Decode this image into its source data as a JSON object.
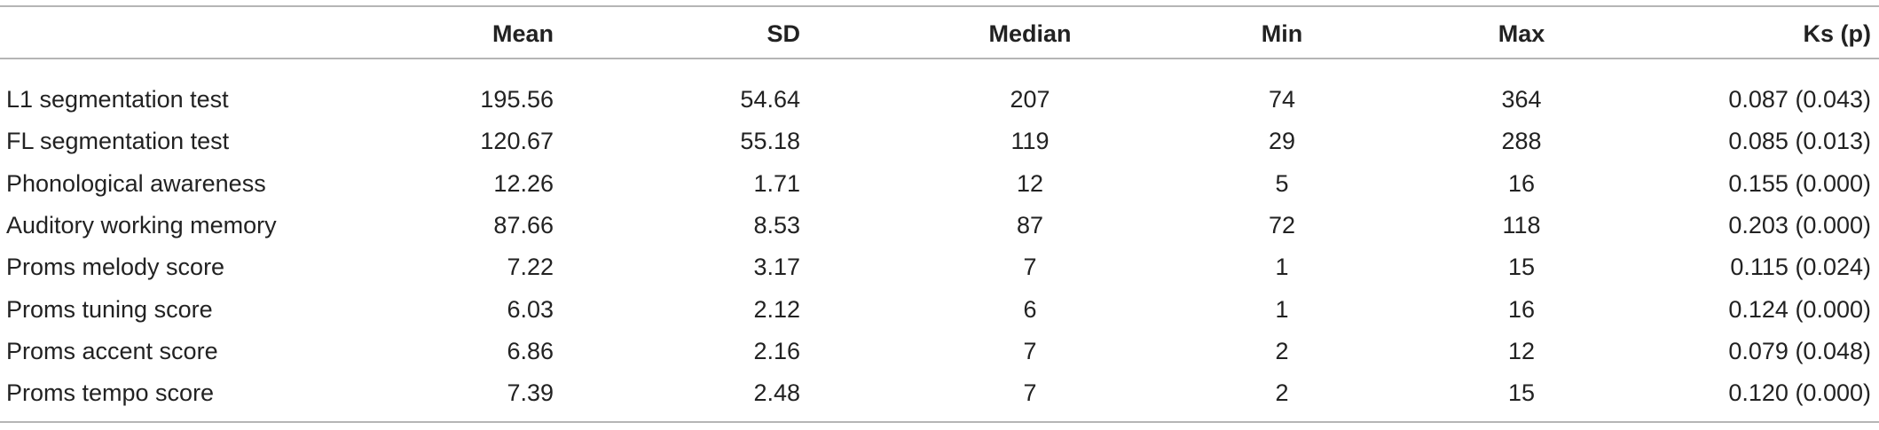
{
  "table": {
    "header": [
      "Mean",
      "SD",
      "Median",
      "Min",
      "Max",
      "Ks (p)"
    ],
    "rows": [
      [
        "L1 segmentation test",
        "195.56",
        "54.64",
        "207",
        "74",
        "364",
        "0.087 (0.043)"
      ],
      [
        "FL segmentation test",
        "120.67",
        "55.18",
        "119",
        "29",
        "288",
        "0.085 (0.013)"
      ],
      [
        "Phonological awareness",
        "12.26",
        "1.71",
        "12",
        "5",
        "16",
        "0.155 (0.000)"
      ],
      [
        "Auditory working memory",
        "87.66",
        "8.53",
        "87",
        "72",
        "118",
        "0.203 (0.000)"
      ],
      [
        "Proms melody score",
        "7.22",
        "3.17",
        "7",
        "1",
        "15",
        "0.115 (0.024)"
      ],
      [
        "Proms tuning score",
        "6.03",
        "2.12",
        "6",
        "1",
        "16",
        "0.124 (0.000)"
      ],
      [
        "Proms accent score",
        "6.86",
        "2.16",
        "7",
        "2",
        "12",
        "0.079 (0.048)"
      ],
      [
        "Proms tempo score",
        "7.39",
        "2.48",
        "7",
        "2",
        "15",
        "0.120 (0.000)"
      ]
    ]
  }
}
